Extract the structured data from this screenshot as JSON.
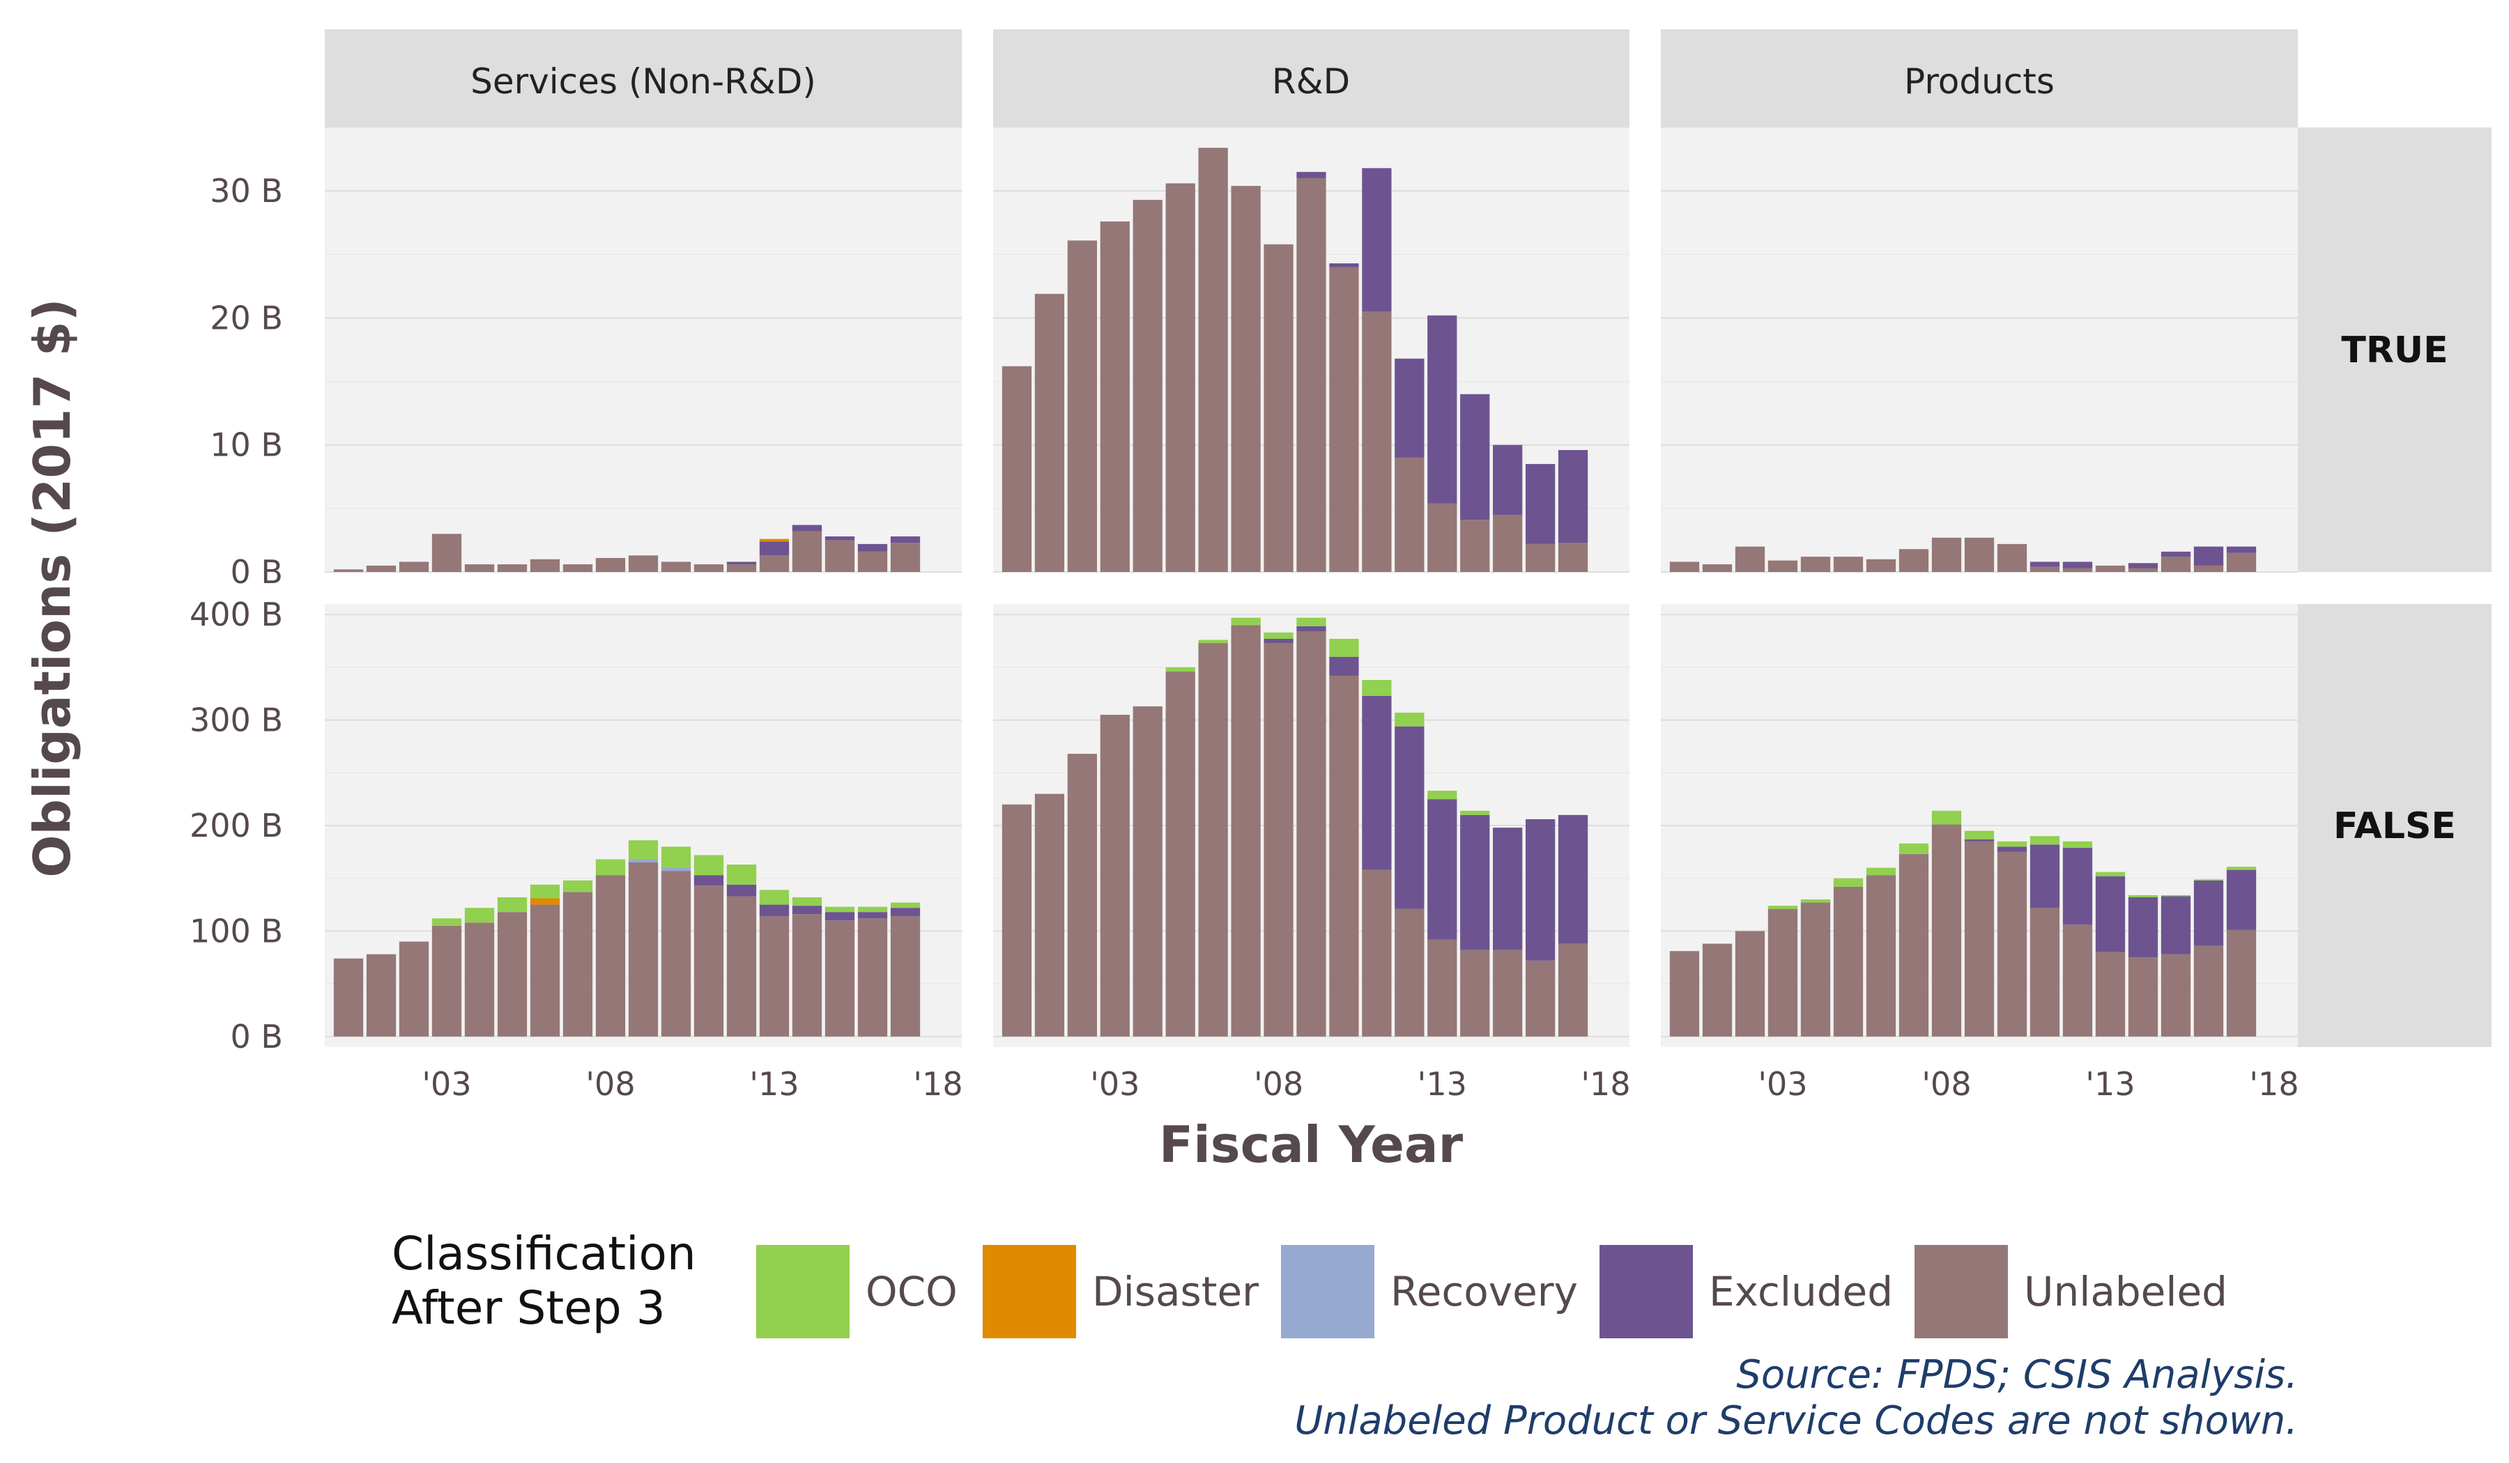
{
  "chart_data": {
    "type": "bar",
    "stacked": true,
    "facet_columns": [
      "Services (Non-R&D)",
      "R&D",
      "Products"
    ],
    "facet_rows": [
      "TRUE",
      "FALSE"
    ],
    "xlabel": "Fiscal Year",
    "ylabel": "Obligations (2017 $)",
    "x_tick_labels": [
      "'03",
      "'08",
      "'13",
      "'18"
    ],
    "x_tick_values": [
      2003,
      2008,
      2013,
      2018
    ],
    "x_range": [
      2000,
      2018
    ],
    "years": [
      2000,
      2001,
      2002,
      2003,
      2004,
      2005,
      2006,
      2007,
      2008,
      2009,
      2010,
      2011,
      2012,
      2013,
      2014,
      2015,
      2016,
      2017
    ],
    "legend": {
      "title_line1": "Classification",
      "title_line2": "After Step 3",
      "items": [
        {
          "key": "oco",
          "label": "OCO",
          "color": "#92d050"
        },
        {
          "key": "disaster",
          "label": "Disaster",
          "color": "#e08a00"
        },
        {
          "key": "recovery",
          "label": "Recovery",
          "color": "#95a9d1"
        },
        {
          "key": "excluded",
          "label": "Excluded",
          "color": "#6d5491"
        },
        {
          "key": "unlabeled",
          "label": "Unlabeled",
          "color": "#957777"
        }
      ]
    },
    "caption_line1": "Source: FPDS; CSIS Analysis.",
    "caption_line2": "Unlabeled Product or Service Codes are not shown.",
    "rows": [
      {
        "row": "TRUE",
        "ylim": [
          0,
          35
        ],
        "y_ticks": [
          0,
          10,
          20,
          30
        ],
        "y_tick_labels": [
          "0 B",
          "10 B",
          "20 B",
          "30 B"
        ],
        "panels": [
          {
            "column": "Services (Non-R&D)",
            "unlabeled": [
              0.2,
              0.5,
              0.8,
              3.0,
              0.6,
              0.6,
              1.0,
              0.6,
              1.1,
              1.3,
              0.8,
              0.6,
              0.6,
              1.3,
              3.2,
              2.5,
              1.6,
              2.3
            ],
            "excluded": [
              0,
              0,
              0,
              0,
              0,
              0,
              0,
              0,
              0,
              0,
              0,
              0,
              0.2,
              1.1,
              0.5,
              0.3,
              0.6,
              0.5
            ],
            "disaster": [
              0,
              0,
              0,
              0,
              0,
              0,
              0,
              0,
              0,
              0,
              0,
              0,
              0,
              0.2,
              0,
              0,
              0,
              0
            ],
            "recovery": [
              0,
              0,
              0,
              0,
              0,
              0,
              0,
              0,
              0,
              0,
              0,
              0,
              0,
              0,
              0,
              0,
              0,
              0
            ],
            "oco": [
              0,
              0,
              0,
              0,
              0,
              0,
              0,
              0,
              0,
              0,
              0,
              0,
              0,
              0,
              0,
              0,
              0,
              0
            ]
          },
          {
            "column": "R&D",
            "unlabeled": [
              16.2,
              21.9,
              26.1,
              27.6,
              29.3,
              30.6,
              33.4,
              30.4,
              25.8,
              31.0,
              24.0,
              20.5,
              9.0,
              5.4,
              4.1,
              4.5,
              2.2,
              2.3
            ],
            "excluded": [
              0,
              0,
              0,
              0,
              0,
              0,
              0,
              0,
              0,
              0.5,
              0.3,
              11.3,
              7.8,
              14.8,
              9.9,
              5.5,
              6.3,
              7.3
            ],
            "disaster": [
              0,
              0,
              0,
              0,
              0,
              0,
              0,
              0,
              0,
              0,
              0,
              0,
              0,
              0,
              0,
              0,
              0,
              0
            ],
            "recovery": [
              0,
              0,
              0,
              0,
              0,
              0,
              0,
              0,
              0,
              0,
              0,
              0,
              0,
              0,
              0,
              0,
              0,
              0
            ],
            "oco": [
              0,
              0,
              0,
              0,
              0,
              0,
              0,
              0,
              0,
              0,
              0,
              0,
              0,
              0,
              0,
              0,
              0,
              0
            ]
          },
          {
            "column": "Products",
            "unlabeled": [
              0.8,
              0.6,
              2.0,
              0.9,
              1.2,
              1.2,
              1.0,
              1.8,
              2.7,
              2.7,
              2.2,
              0.4,
              0.3,
              0.5,
              0.3,
              1.2,
              0.5,
              1.5
            ],
            "excluded": [
              0,
              0,
              0,
              0,
              0,
              0,
              0,
              0,
              0,
              0,
              0,
              0.4,
              0.5,
              0,
              0.4,
              0.4,
              1.5,
              0.5
            ],
            "disaster": [
              0,
              0,
              0,
              0,
              0,
              0,
              0,
              0,
              0,
              0,
              0,
              0,
              0,
              0,
              0,
              0,
              0,
              0
            ],
            "recovery": [
              0,
              0,
              0,
              0,
              0,
              0,
              0,
              0,
              0,
              0,
              0,
              0,
              0,
              0,
              0,
              0,
              0,
              0
            ],
            "oco": [
              0,
              0,
              0,
              0,
              0,
              0,
              0,
              0,
              0,
              0,
              0,
              0,
              0,
              0,
              0,
              0,
              0,
              0
            ]
          }
        ]
      },
      {
        "row": "FALSE",
        "ylim": [
          -10,
          410
        ],
        "y_ticks": [
          0,
          100,
          200,
          300,
          400
        ],
        "y_tick_labels": [
          "0 B",
          "100 B",
          "200 B",
          "300 B",
          "400 B"
        ],
        "panels": [
          {
            "column": "Services (Non-R&D)",
            "unlabeled": [
              74,
              78,
              90,
              105,
              108,
              118,
              125,
              137,
              153,
              165,
              157,
              143,
              133,
              114,
              116,
              110,
              112,
              114
            ],
            "excluded": [
              0,
              0,
              0,
              0,
              0,
              0,
              0,
              0,
              0,
              0,
              0,
              10,
              11,
              11,
              8,
              8,
              6,
              8
            ],
            "disaster": [
              0,
              0,
              0,
              0,
              0,
              0,
              6,
              0,
              0,
              0,
              0,
              0,
              0,
              0,
              0,
              0,
              0,
              0
            ],
            "recovery": [
              0,
              0,
              0,
              0,
              0,
              0,
              0,
              0,
              0,
              3,
              3,
              0,
              0,
              0,
              0,
              0,
              0,
              0
            ],
            "oco": [
              0,
              0,
              0,
              7,
              14,
              14,
              13,
              11,
              15,
              18,
              20,
              19,
              19,
              14,
              8,
              5,
              5,
              5
            ]
          },
          {
            "column": "R&D",
            "unlabeled": [
              220,
              230,
              268,
              305,
              313,
              346,
              373,
              390,
              373,
              384,
              342,
              158,
              121,
              92,
              82,
              82,
              72,
              88
            ],
            "excluded": [
              0,
              0,
              0,
              0,
              0,
              0,
              0,
              0,
              4,
              5,
              18,
              165,
              173,
              133,
              128,
              116,
              134,
              122
            ],
            "disaster": [
              0,
              0,
              0,
              0,
              0,
              0,
              0,
              0,
              0,
              0,
              0,
              0,
              0,
              0,
              0,
              0,
              0,
              0
            ],
            "recovery": [
              0,
              0,
              0,
              0,
              0,
              0,
              0,
              0,
              0,
              0,
              0,
              0,
              0,
              0,
              0,
              0,
              0,
              0
            ],
            "oco": [
              0,
              0,
              0,
              0,
              0,
              4,
              3,
              7,
              6,
              8,
              17,
              15,
              13,
              8,
              4,
              0,
              0,
              0
            ]
          },
          {
            "column": "Products",
            "unlabeled": [
              81,
              88,
              100,
              121,
              127,
              142,
              153,
              173,
              201,
              185,
              175,
              122,
              106,
              80,
              75,
              78,
              86,
              101
            ],
            "excluded": [
              0,
              0,
              0,
              0,
              0,
              0,
              0,
              0,
              0,
              2,
              5,
              60,
              73,
              72,
              57,
              55,
              62,
              57
            ],
            "disaster": [
              0,
              0,
              0,
              0,
              0,
              0,
              0,
              0,
              0,
              0,
              0,
              0,
              0,
              0,
              0,
              0,
              0,
              0
            ],
            "recovery": [
              0,
              0,
              0,
              0,
              0,
              0,
              0,
              0,
              0,
              0,
              0,
              0,
              0,
              0,
              0,
              0,
              0,
              0
            ],
            "oco": [
              0,
              0,
              0,
              3,
              3,
              8,
              7,
              10,
              13,
              8,
              5,
              8,
              6,
              4,
              2,
              1,
              1,
              3
            ]
          }
        ]
      }
    ]
  }
}
